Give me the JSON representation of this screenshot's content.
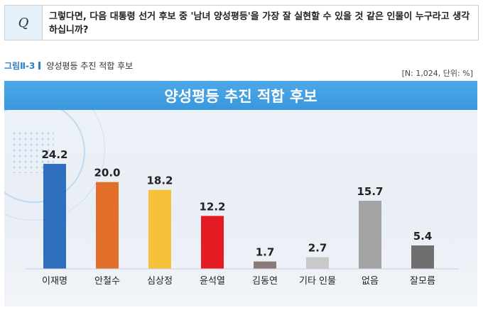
{
  "question": {
    "mark": "Q",
    "text": "그렇다면, 다음 대통령 선거 후보 중 '남녀 양성평등'을 가장 잘 실현할 수 있을 것 같은 인물이 누구라고 생각하십니까?"
  },
  "figure": {
    "number": "그림Ⅱ-3",
    "caption": "양성평등 추진 적합 후보",
    "note": "[N: 1,024, 단위: %]"
  },
  "chart_data": {
    "type": "bar",
    "title": "양성평등 추진 적합 후보",
    "categories": [
      "이재명",
      "안철수",
      "심상정",
      "윤석열",
      "김동연",
      "기타 인물",
      "없음",
      "잘모름"
    ],
    "values": [
      24.2,
      20.0,
      18.2,
      12.2,
      1.7,
      2.7,
      15.7,
      5.4
    ],
    "value_labels": [
      "24.2",
      "20.0",
      "18.2",
      "12.2",
      "1.7",
      "2.7",
      "15.7",
      "5.4"
    ],
    "colors": [
      "#2e6fbd",
      "#e2702a",
      "#f7c23a",
      "#e51b23",
      "#8a7a78",
      "#c9c9c9",
      "#a3a3a3",
      "#6f6f6f"
    ],
    "ylim": [
      0,
      24.2
    ],
    "xlabel": "",
    "ylabel": "",
    "grid": false,
    "legend": "none"
  }
}
